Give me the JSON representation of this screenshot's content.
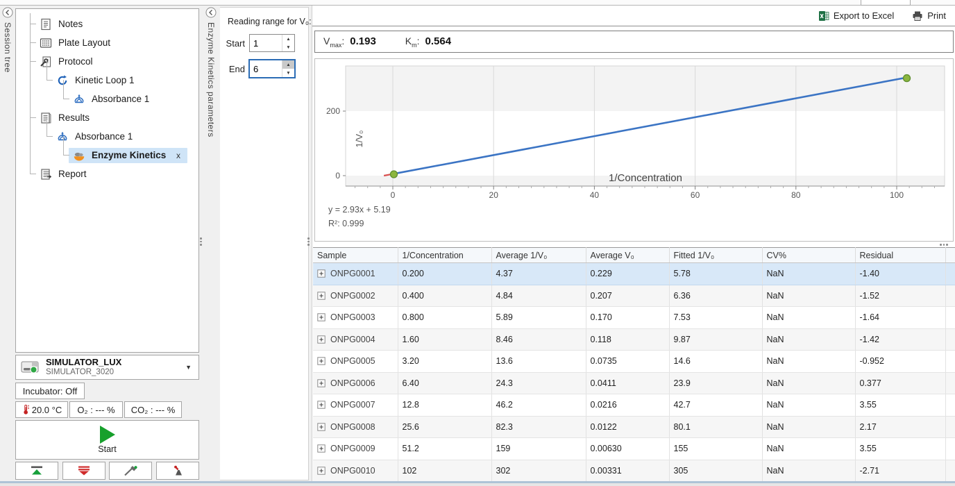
{
  "window": {
    "bottom_edge_color": "#aec3d6"
  },
  "left_rail": {
    "label": "Session tree"
  },
  "right_rail": {
    "label": "Enzyme Kinetics parameters"
  },
  "session_tree": {
    "items": [
      {
        "label": "Notes",
        "icon": "notes-icon",
        "depth": 0
      },
      {
        "label": "Plate Layout",
        "icon": "plate-layout-icon",
        "depth": 0
      },
      {
        "label": "Protocol",
        "icon": "protocol-icon",
        "depth": 0
      },
      {
        "label": "Kinetic Loop 1",
        "icon": "kinetic-loop-icon",
        "depth": 1
      },
      {
        "label": "Absorbance 1",
        "icon": "absorbance-icon",
        "depth": 2
      },
      {
        "label": "Results",
        "icon": "results-icon",
        "depth": 0
      },
      {
        "label": "Absorbance 1",
        "icon": "absorbance-icon",
        "depth": 1
      },
      {
        "label": "Enzyme Kinetics",
        "icon": "enzyme-kinetics-icon",
        "depth": 2,
        "selected": true,
        "close_label": "x"
      },
      {
        "label": "Report",
        "icon": "report-icon",
        "depth": 0
      }
    ]
  },
  "params_panel": {
    "title": "Reading range for V₀:",
    "fields": [
      {
        "label": "Start",
        "value": "1",
        "focused": false
      },
      {
        "label": "End",
        "value": "6",
        "focused": true
      }
    ]
  },
  "instrument": {
    "name": "SIMULATOR_LUX",
    "model": "SIMULATOR_3020",
    "incubator_label": "Incubator: Off",
    "temperature": "20.0 °C",
    "o2_label": "O₂ : --- %",
    "co2_label": "CO₂ : --- %",
    "start_label": "Start"
  },
  "toolbar": {
    "export_label": "Export to Excel",
    "print_label": "Print"
  },
  "results": {
    "vmax_base": "V",
    "vmax_sub": "max",
    "vmax_value": "0.193",
    "km_base": "K",
    "km_sub": "m",
    "km_value": "0.564",
    "sep": ":"
  },
  "chart_data": {
    "type": "scatter",
    "title": "",
    "xlabel": "1/Concentration",
    "ylabel": "1/V₀",
    "xlim": [
      -9.4,
      109.4
    ],
    "ylim": [
      -32,
      340
    ],
    "x_ticks": [
      0,
      20,
      40,
      60,
      80,
      100
    ],
    "x_minor_step": 2.5,
    "y_ticks": [
      0,
      200
    ],
    "band_size": 200,
    "grid": true,
    "legend": false,
    "equation": "y = 2.93x + 5.19",
    "r_squared_label": "R²: 0.999",
    "fit": {
      "slope": 2.93,
      "intercept": 5.19,
      "x_intercept": -1.771
    },
    "points": [
      {
        "x": 0.2,
        "y": 4.37
      },
      {
        "x": 0.4,
        "y": 4.84
      },
      {
        "x": 0.8,
        "y": 5.89
      },
      {
        "x": 1.6,
        "y": 8.46
      },
      {
        "x": 3.2,
        "y": 13.6
      },
      {
        "x": 6.4,
        "y": 24.3
      },
      {
        "x": 12.8,
        "y": 46.2
      },
      {
        "x": 25.6,
        "y": 82.3
      },
      {
        "x": 51.2,
        "y": 159
      },
      {
        "x": 102,
        "y": 302
      }
    ],
    "visible_markers": [
      {
        "x": 0.2,
        "y": 4.37
      },
      {
        "x": 102,
        "y": 302
      }
    ],
    "colors": {
      "line": "#3b74c4",
      "marker": "#8cb63f",
      "marker_border": "#5f8f2f",
      "extrapolation": "#d94f4f",
      "band": "#f3f3f3",
      "grid": "#d9d9d9"
    }
  },
  "table": {
    "columns": [
      "Sample",
      "1/Concentration",
      "Average 1/V₀",
      "Average V₀",
      "Fitted 1/V₀",
      "CV%",
      "Residual"
    ],
    "selected_index": 0,
    "rows": [
      [
        "ONPG0001",
        "0.200",
        "4.37",
        "0.229",
        "5.78",
        "NaN",
        "-1.40"
      ],
      [
        "ONPG0002",
        "0.400",
        "4.84",
        "0.207",
        "6.36",
        "NaN",
        "-1.52"
      ],
      [
        "ONPG0003",
        "0.800",
        "5.89",
        "0.170",
        "7.53",
        "NaN",
        "-1.64"
      ],
      [
        "ONPG0004",
        "1.60",
        "8.46",
        "0.118",
        "9.87",
        "NaN",
        "-1.42"
      ],
      [
        "ONPG0005",
        "3.20",
        "13.6",
        "0.0735",
        "14.6",
        "NaN",
        "-0.952"
      ],
      [
        "ONPG0006",
        "6.40",
        "24.3",
        "0.0411",
        "23.9",
        "NaN",
        "0.377"
      ],
      [
        "ONPG0007",
        "12.8",
        "46.2",
        "0.0216",
        "42.7",
        "NaN",
        "3.55"
      ],
      [
        "ONPG0008",
        "25.6",
        "82.3",
        "0.0122",
        "80.1",
        "NaN",
        "2.17"
      ],
      [
        "ONPG0009",
        "51.2",
        "159",
        "0.00630",
        "155",
        "NaN",
        "3.55"
      ],
      [
        "ONPG0010",
        "102",
        "302",
        "0.00331",
        "305",
        "NaN",
        "-2.71"
      ]
    ]
  }
}
